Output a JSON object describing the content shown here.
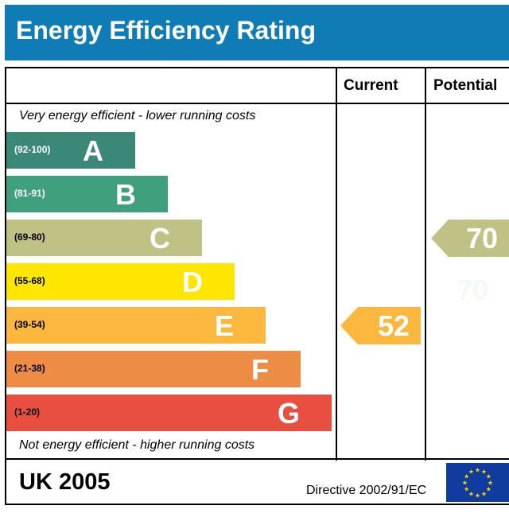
{
  "title": "Energy Efficiency Rating",
  "columns": {
    "current": "Current",
    "potential": "Potential"
  },
  "top_note": "Very energy efficient - lower running costs",
  "bottom_note": "Not energy efficient - higher running costs",
  "footer": {
    "country": "UK 2005",
    "directive": "Directive 2002/91/EC"
  },
  "chart_data": {
    "type": "bar",
    "bands": [
      {
        "letter": "A",
        "range": "(92-100)",
        "color": "#3c8878",
        "text_color": "#ffffff"
      },
      {
        "letter": "B",
        "range": "(81-91)",
        "color": "#3fa07e",
        "text_color": "#ffffff"
      },
      {
        "letter": "C",
        "range": "(69-80)",
        "color": "#c0c184",
        "text_color": "#000000"
      },
      {
        "letter": "D",
        "range": "(55-68)",
        "color": "#ffe600",
        "text_color": "#000000"
      },
      {
        "letter": "E",
        "range": "(39-54)",
        "color": "#fbb73e",
        "text_color": "#000000"
      },
      {
        "letter": "F",
        "range": "(21-38)",
        "color": "#ed8c45",
        "text_color": "#000000"
      },
      {
        "letter": "G",
        "range": "(1-20)",
        "color": "#e94f41",
        "text_color": "#000000"
      }
    ],
    "current": {
      "value": "52",
      "band": "E",
      "color": "#fbb73e"
    },
    "potential": {
      "value": "70",
      "band": "C",
      "color": "#c0c184"
    }
  },
  "colors": {
    "header": "#0f7cb6",
    "eu_flag": "#0f3c9e",
    "eu_stars": "#ffd200"
  }
}
